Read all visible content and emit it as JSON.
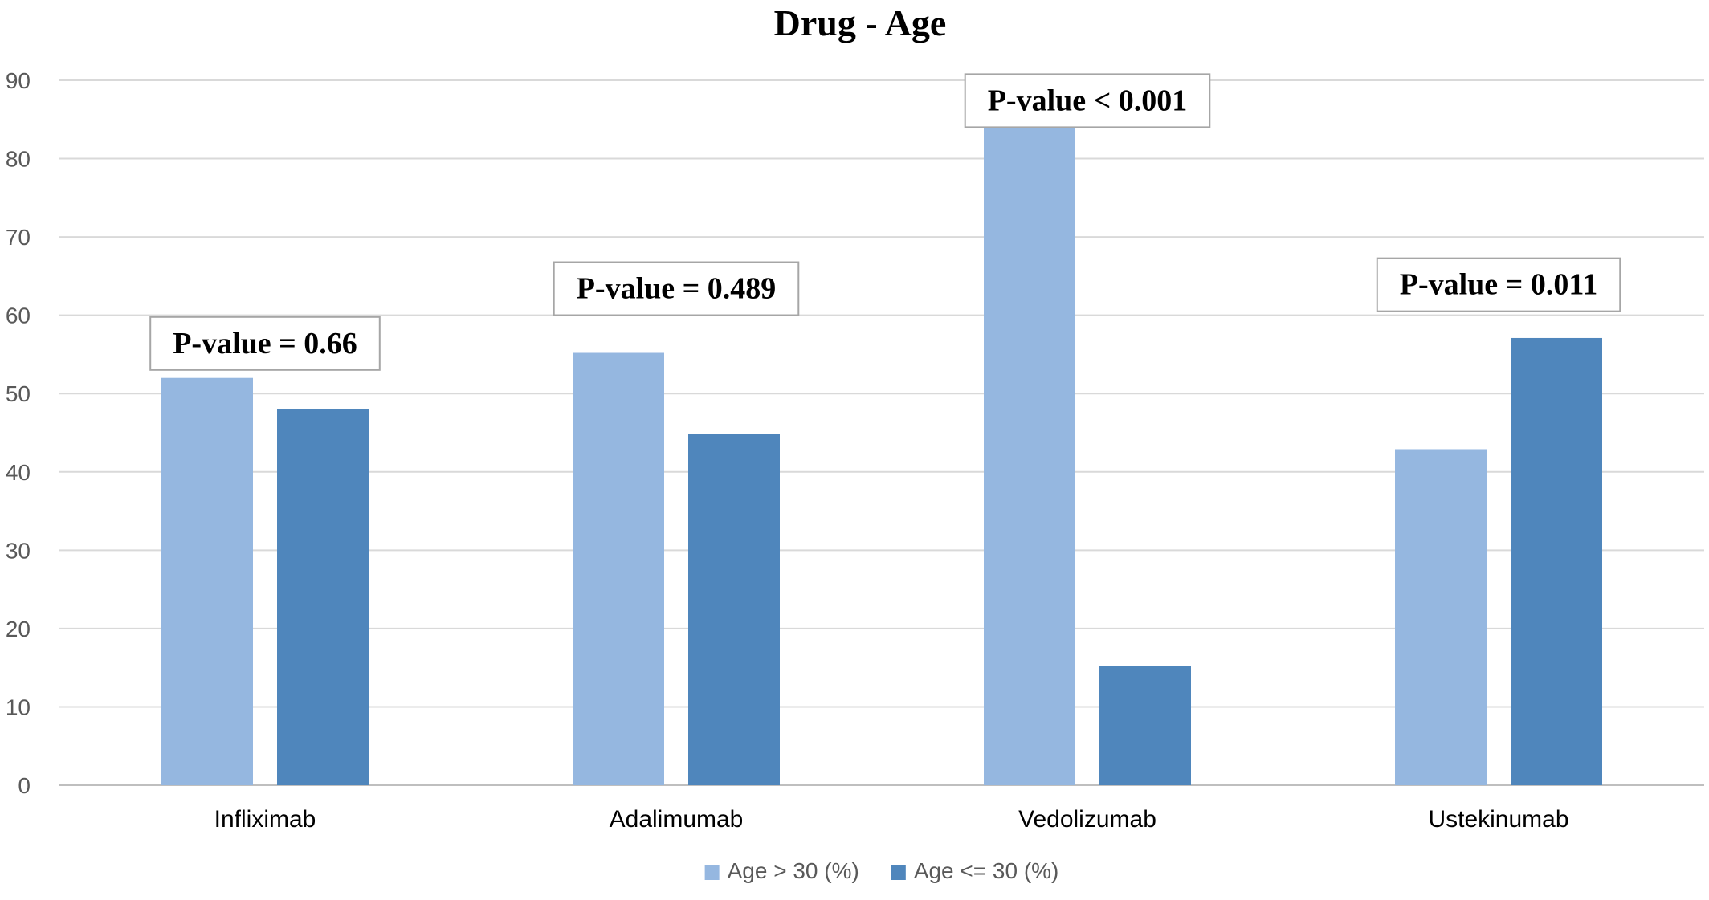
{
  "chart_data": {
    "type": "bar",
    "title": "Drug - Age",
    "xlabel": "",
    "ylabel": "",
    "ylim": [
      0,
      90
    ],
    "yticks": [
      0,
      10,
      20,
      30,
      40,
      50,
      60,
      70,
      80,
      90
    ],
    "grid": true,
    "legend_position": "bottom",
    "categories": [
      "Infliximab",
      "Adalimumab",
      "Vedolizumab",
      "Ustekinumab"
    ],
    "series": [
      {
        "name": "Age > 30 (%)",
        "color": "#95b7e0",
        "values": [
          52,
          55.2,
          84.8,
          42.9
        ]
      },
      {
        "name": "Age <= 30 (%)",
        "color": "#4f86bc",
        "values": [
          48,
          44.8,
          15.2,
          57.1
        ]
      }
    ],
    "annotations": [
      {
        "text": "P-value = 0.66",
        "category": "Infliximab",
        "y": 56.5
      },
      {
        "text": "P-value = 0.489",
        "category": "Adalimumab",
        "y": 63.5
      },
      {
        "text": "P-value < 0.001",
        "category": "Vedolizumab",
        "y": 87.5
      },
      {
        "text": "P-value = 0.011",
        "category": "Ustekinumab",
        "y": 64.0
      }
    ]
  }
}
